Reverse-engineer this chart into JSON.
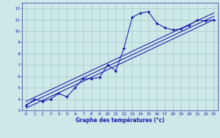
{
  "xlabel": "Graphe des températures (°c)",
  "bg_color": "#cce8e8",
  "grid_color": "#aacccc",
  "line_color": "#1a1aaa",
  "spine_color": "#4444aa",
  "xlim": [
    -0.5,
    23.5
  ],
  "ylim": [
    3,
    12.5
  ],
  "xticks": [
    0,
    1,
    2,
    3,
    4,
    5,
    6,
    7,
    8,
    9,
    10,
    11,
    12,
    13,
    14,
    15,
    16,
    17,
    18,
    19,
    20,
    21,
    22,
    23
  ],
  "yticks": [
    3,
    4,
    5,
    6,
    7,
    8,
    9,
    10,
    11,
    12
  ],
  "main_series_x": [
    0,
    1,
    2,
    3,
    4,
    5,
    6,
    7,
    8,
    9,
    10,
    11,
    12,
    13,
    14,
    15,
    16,
    17,
    18,
    19,
    20,
    21,
    22,
    23
  ],
  "main_series_y": [
    3.4,
    4.0,
    3.8,
    4.0,
    4.5,
    4.2,
    5.0,
    5.8,
    5.8,
    5.9,
    7.0,
    6.5,
    8.5,
    11.2,
    11.6,
    11.7,
    10.7,
    10.3,
    10.1,
    10.2,
    10.5,
    11.0,
    10.9,
    11.0
  ],
  "reg_line1_x": [
    0,
    23
  ],
  "reg_line1_y": [
    3.2,
    11.0
  ],
  "reg_line2_x": [
    0,
    23
  ],
  "reg_line2_y": [
    3.5,
    11.3
  ],
  "reg_line3_x": [
    0,
    23
  ],
  "reg_line3_y": [
    3.8,
    11.6
  ],
  "tick_fontsize": 4.5,
  "xlabel_fontsize": 5.5,
  "marker_size": 2.0
}
